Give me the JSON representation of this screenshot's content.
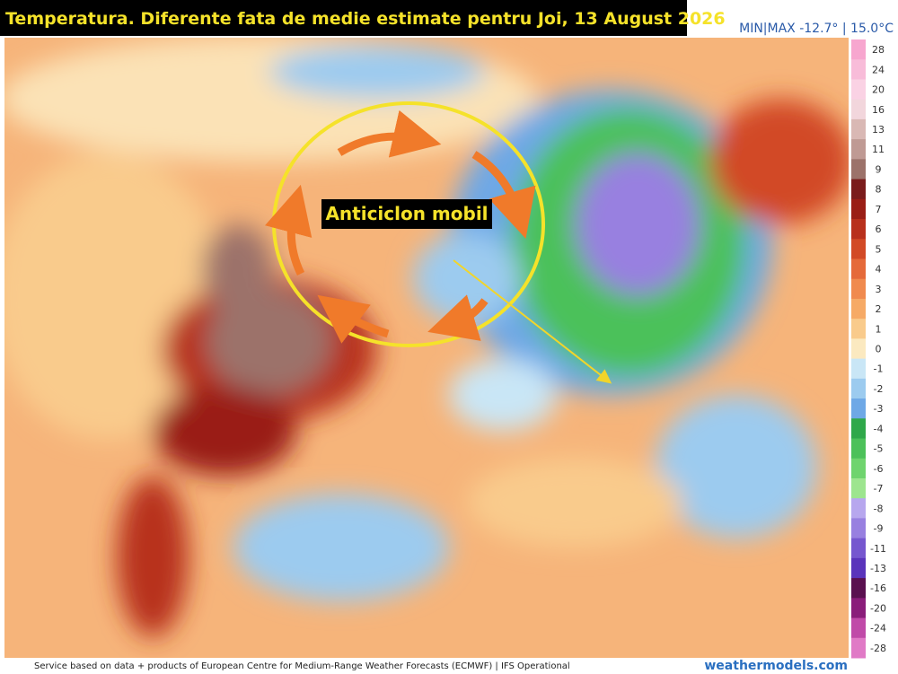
{
  "header": {
    "title": "Temperatura. Diferente fata de medie estimate pentru Joi, 13 August 2026",
    "minmax": "MIN|MAX -12.7° | 15.0°C"
  },
  "annotation": "Anticiclon mobil",
  "legend": [
    {
      "label": "28",
      "color": "#f7a6cf"
    },
    {
      "label": "24",
      "color": "#f8bcd9"
    },
    {
      "label": "20",
      "color": "#fad2e4"
    },
    {
      "label": "16",
      "color": "#f2d6dc"
    },
    {
      "label": "13",
      "color": "#d9b8b4"
    },
    {
      "label": "11",
      "color": "#bf9a94"
    },
    {
      "label": "9",
      "color": "#9c726a"
    },
    {
      "label": "8",
      "color": "#7a1c1c"
    },
    {
      "label": "7",
      "color": "#9a1e16"
    },
    {
      "label": "6",
      "color": "#b8301c"
    },
    {
      "label": "5",
      "color": "#d24a26"
    },
    {
      "label": "4",
      "color": "#e56a3a"
    },
    {
      "label": "3",
      "color": "#f08a4e"
    },
    {
      "label": "2",
      "color": "#f6aa66"
    },
    {
      "label": "1",
      "color": "#f9cb8c"
    },
    {
      "label": "0",
      "color": "#fbe9c0"
    },
    {
      "label": "-1",
      "color": "#c9e6f6"
    },
    {
      "label": "-2",
      "color": "#9ccbef"
    },
    {
      "label": "-3",
      "color": "#6ea8e6"
    },
    {
      "label": "-4",
      "color": "#2fa84a"
    },
    {
      "label": "-5",
      "color": "#4cc15a"
    },
    {
      "label": "-6",
      "color": "#6fd46e"
    },
    {
      "label": "-7",
      "color": "#9de58f"
    },
    {
      "label": "-8",
      "color": "#b7a7ee"
    },
    {
      "label": "-9",
      "color": "#9880e0"
    },
    {
      "label": "-11",
      "color": "#7657cf"
    },
    {
      "label": "-13",
      "color": "#5a34bb"
    },
    {
      "label": "-16",
      "color": "#5a1050"
    },
    {
      "label": "-20",
      "color": "#8a1d7a"
    },
    {
      "label": "-24",
      "color": "#c04aa8"
    },
    {
      "label": "-28",
      "color": "#e07ac6"
    }
  ],
  "footer": {
    "source": "Service based on data + products of European Centre for Medium-Range Weather Forecasts (ECMWF) | IFS Operational",
    "brand": "weathermodels.com"
  }
}
